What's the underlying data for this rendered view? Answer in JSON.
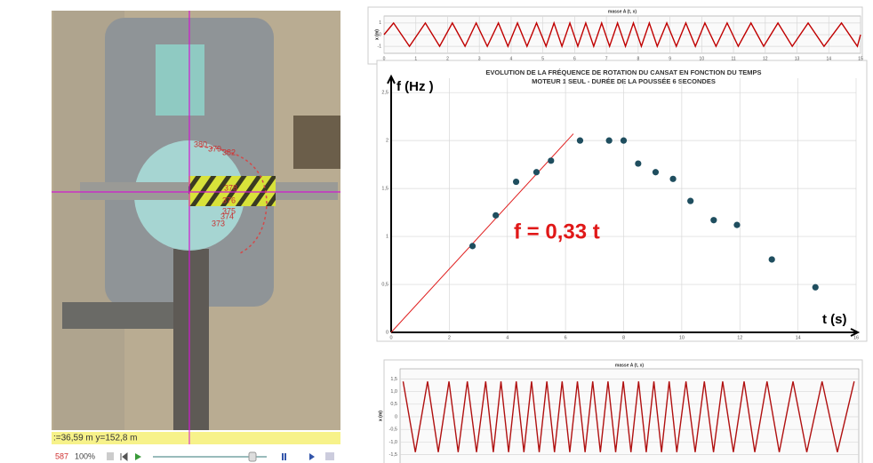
{
  "video": {
    "readout": ":=36,59 m  y=152,8 m",
    "frame": "587",
    "zoom": "100%",
    "track_labels": [
      "380",
      "379",
      "382",
      "378",
      "376",
      "375",
      "374",
      "373"
    ]
  },
  "chart_data": [
    {
      "type": "line",
      "title": "masse A (t, x)",
      "y_label": "x (m)",
      "color": "#c00000",
      "x": [
        0,
        0.3,
        0.8,
        1.3,
        1.75,
        2.15,
        2.55,
        2.9,
        3.25,
        3.6,
        3.9,
        4.2,
        4.5,
        4.8,
        5.1,
        5.35,
        5.6,
        5.85,
        6.1,
        6.35,
        6.6,
        6.85,
        7.1,
        7.35,
        7.6,
        7.85,
        8.1,
        8.35,
        8.6,
        8.9,
        9.2,
        9.5,
        9.8,
        10.1,
        10.45,
        10.8,
        11.15,
        11.55,
        11.95,
        12.4,
        12.85,
        13.35,
        13.85,
        14.4,
        14.9,
        15
      ],
      "values": [
        0,
        1,
        -1,
        1,
        -1,
        1,
        -1,
        1,
        -1,
        1,
        -1,
        1,
        -1,
        1,
        -1,
        1,
        -1,
        1,
        -1,
        1,
        -1,
        1,
        -1,
        1,
        -1,
        1,
        -1,
        1,
        -1,
        1,
        -1,
        1,
        -1,
        1,
        -1,
        1,
        -1,
        1,
        -1,
        1,
        -1,
        1,
        -1,
        1,
        -1,
        0
      ],
      "xlim": [
        0,
        15
      ],
      "xticks": [
        0,
        1,
        2,
        3,
        4,
        5,
        6,
        7,
        8,
        9,
        10,
        11,
        12,
        13,
        14,
        15
      ],
      "ylim": [
        -1.6,
        1.6
      ],
      "yticks": [
        -1,
        0,
        1
      ],
      "grid": true
    },
    {
      "type": "scatter",
      "title": "EVOLUTION DE LA FRÉQUENCE DE ROTATION DU CANSAT EN FONCTION DU TEMPS",
      "subtitle": "MOTEUR 1 SEUL - DURÉE DE LA POUSSÉE 6 SECONDES",
      "x_label": "t (s)",
      "y_label": "f (Hz )",
      "annotation": "f = 0,33 t",
      "color": "#1f4e5f",
      "x": [
        2.8,
        3.6,
        4.3,
        5.0,
        5.5,
        6.5,
        7.5,
        8.0,
        8.5,
        9.1,
        9.7,
        10.3,
        11.1,
        11.9,
        13.1,
        14.6
      ],
      "values": [
        0.9,
        1.22,
        1.57,
        1.67,
        1.79,
        2.0,
        2.0,
        2.0,
        1.76,
        1.67,
        1.6,
        1.37,
        1.17,
        1.12,
        0.76,
        0.47
      ],
      "trendline": {
        "color": "#e02020",
        "x": [
          0,
          6.27
        ],
        "values": [
          0,
          2.07
        ]
      },
      "xlim": [
        0,
        16
      ],
      "xticks": [
        0,
        2,
        4,
        6,
        8,
        10,
        12,
        14,
        16
      ],
      "ylim": [
        0,
        2.65
      ],
      "yticks": [
        0,
        {
          "value": 0.5,
          "label": "0,5"
        },
        1,
        {
          "value": 1.5,
          "label": "1,5"
        },
        2,
        {
          "value": 2.5,
          "label": "2,5"
        }
      ],
      "grid": true
    },
    {
      "type": "line",
      "title": "masse A (t, x)",
      "y_label": "x (m)",
      "color": "#b01010",
      "x": [
        0.1,
        0.5,
        0.9,
        1.25,
        1.6,
        1.9,
        2.2,
        2.5,
        2.8,
        3.05,
        3.3,
        3.55,
        3.8,
        4.05,
        4.3,
        4.55,
        4.8,
        5.05,
        5.3,
        5.55,
        5.8,
        6.05,
        6.3,
        6.55,
        6.8,
        7.05,
        7.3,
        7.55,
        7.8,
        8.05,
        8.3,
        8.55,
        8.8,
        9.05,
        9.35,
        9.65,
        9.95,
        10.25,
        10.55,
        10.9,
        11.25,
        11.6,
        12.0,
        12.4,
        12.85,
        13.3,
        13.8,
        14.3,
        14.85
      ],
      "values": [
        1.4,
        -1.4,
        1.4,
        -1.4,
        1.4,
        -1.4,
        1.4,
        -1.4,
        1.4,
        -1.4,
        1.4,
        -1.4,
        1.4,
        -1.4,
        1.4,
        -1.4,
        1.4,
        -1.4,
        1.4,
        -1.4,
        1.4,
        -1.4,
        1.4,
        -1.4,
        1.4,
        -1.4,
        1.4,
        -1.4,
        1.4,
        -1.4,
        1.4,
        -1.4,
        1.4,
        -1.4,
        1.4,
        -1.4,
        1.4,
        -1.4,
        1.4,
        -1.4,
        1.4,
        -1.4,
        1.4,
        -1.4,
        1.4,
        -1.4,
        1.4,
        -1.4,
        1.4
      ],
      "xlim": [
        0,
        15
      ],
      "ylim": [
        -1.9,
        1.9
      ],
      "yticks": [
        {
          "value": -1.5,
          "label": "-1,5"
        },
        {
          "value": -1,
          "label": "-1,0"
        },
        {
          "value": -0.5,
          "label": "-0,5"
        },
        0,
        {
          "value": 0.5,
          "label": "0,5"
        },
        {
          "value": 1,
          "label": "1,0"
        },
        {
          "value": 1.5,
          "label": "1,5"
        }
      ],
      "grid": true
    }
  ]
}
